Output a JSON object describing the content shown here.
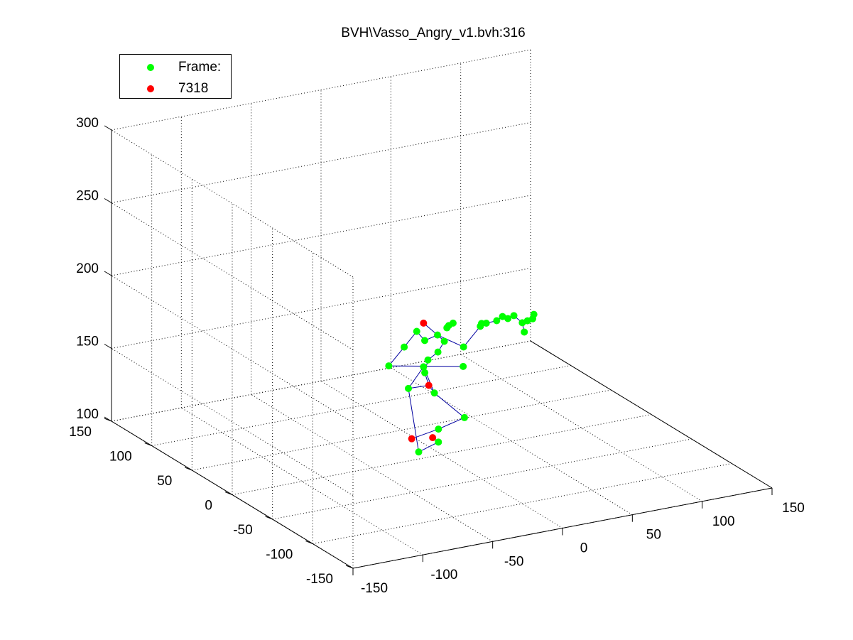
{
  "title": "BVH\\Vasso_Angry_v1.bvh:316",
  "legend": {
    "entries": [
      {
        "label": "Frame:",
        "color": "#00ff00"
      },
      {
        "label": "7318",
        "color": "#ff0000"
      }
    ]
  },
  "colors": {
    "joint": "#00ff00",
    "end_site": "#ff0000",
    "bone": "#0000a0",
    "axes": "#000000",
    "grid": "#000000"
  },
  "chart_data": {
    "type": "scatter",
    "projection": "3d",
    "title": "BVH\\Vasso_Angry_v1.bvh:316",
    "xlabel": "",
    "ylabel": "",
    "zlabel": "",
    "xlim": [
      -150,
      150
    ],
    "ylim": [
      -150,
      150
    ],
    "zlim": [
      100,
      300
    ],
    "xticks": [
      -150,
      -100,
      -50,
      0,
      50,
      100,
      150
    ],
    "yticks": [
      -150,
      -100,
      -50,
      0,
      50,
      100,
      150
    ],
    "zticks": [
      100,
      150,
      200,
      250,
      300
    ],
    "xtick_labels": [
      "-150",
      "-100",
      "-50",
      "0",
      "50",
      "100",
      "150"
    ],
    "ytick_labels": [
      "-150",
      "-100",
      "-50",
      "0",
      "50",
      "100",
      "150"
    ],
    "ztick_labels": [
      "100",
      "150",
      "200",
      "250",
      "300"
    ],
    "grid": true,
    "legend_position": "top-left",
    "series": [
      {
        "name": "Frame:",
        "color": "#00ff00",
        "points": [
          {
            "x": 10,
            "y": 40,
            "z": 145
          },
          {
            "x": -2,
            "y": 38,
            "z": 133
          },
          {
            "x": 12,
            "y": 30,
            "z": 130
          },
          {
            "x": 22,
            "y": 10,
            "z": 118
          },
          {
            "x": 8,
            "y": 18,
            "z": 110
          },
          {
            "x": -5,
            "y": 20,
            "z": 96
          },
          {
            "x": 12,
            "y": 25,
            "z": 98
          },
          {
            "x": 8,
            "y": 35,
            "z": 143
          },
          {
            "x": 12,
            "y": 38,
            "z": 150
          },
          {
            "x": 18,
            "y": 36,
            "z": 155
          },
          {
            "x": 22,
            "y": 35,
            "z": 162
          },
          {
            "x": 20,
            "y": 40,
            "z": 165
          },
          {
            "x": 25,
            "y": 37,
            "z": 170
          },
          {
            "x": 28,
            "y": 40,
            "z": 170
          },
          {
            "x": 30,
            "y": 38,
            "z": 172
          },
          {
            "x": 12,
            "y": 42,
            "z": 162
          },
          {
            "x": 8,
            "y": 45,
            "z": 168
          },
          {
            "x": -5,
            "y": 38,
            "z": 162
          },
          {
            "x": -12,
            "y": 45,
            "z": 148
          },
          {
            "x": 28,
            "y": 22,
            "z": 148
          },
          {
            "x": 30,
            "y": 25,
            "z": 160
          },
          {
            "x": 42,
            "y": 25,
            "z": 172
          },
          {
            "x": 40,
            "y": 20,
            "z": 176
          },
          {
            "x": 48,
            "y": 28,
            "z": 172
          },
          {
            "x": 52,
            "y": 22,
            "z": 175
          },
          {
            "x": 55,
            "y": 20,
            "z": 178
          },
          {
            "x": 60,
            "y": 22,
            "z": 175
          },
          {
            "x": 62,
            "y": 18,
            "z": 178
          },
          {
            "x": 68,
            "y": 18,
            "z": 172
          },
          {
            "x": 70,
            "y": 15,
            "z": 174
          },
          {
            "x": 72,
            "y": 12,
            "z": 176
          },
          {
            "x": 74,
            "y": 14,
            "z": 178
          },
          {
            "x": 66,
            "y": 12,
            "z": 168
          }
        ]
      },
      {
        "name": "7318",
        "color": "#ff0000",
        "points": [
          {
            "x": 8,
            "y": 30,
            "z": 136
          },
          {
            "x": -10,
            "y": 20,
            "z": 106
          },
          {
            "x": 5,
            "y": 20,
            "z": 104
          },
          {
            "x": 10,
            "y": 40,
            "z": 175
          }
        ]
      }
    ]
  }
}
